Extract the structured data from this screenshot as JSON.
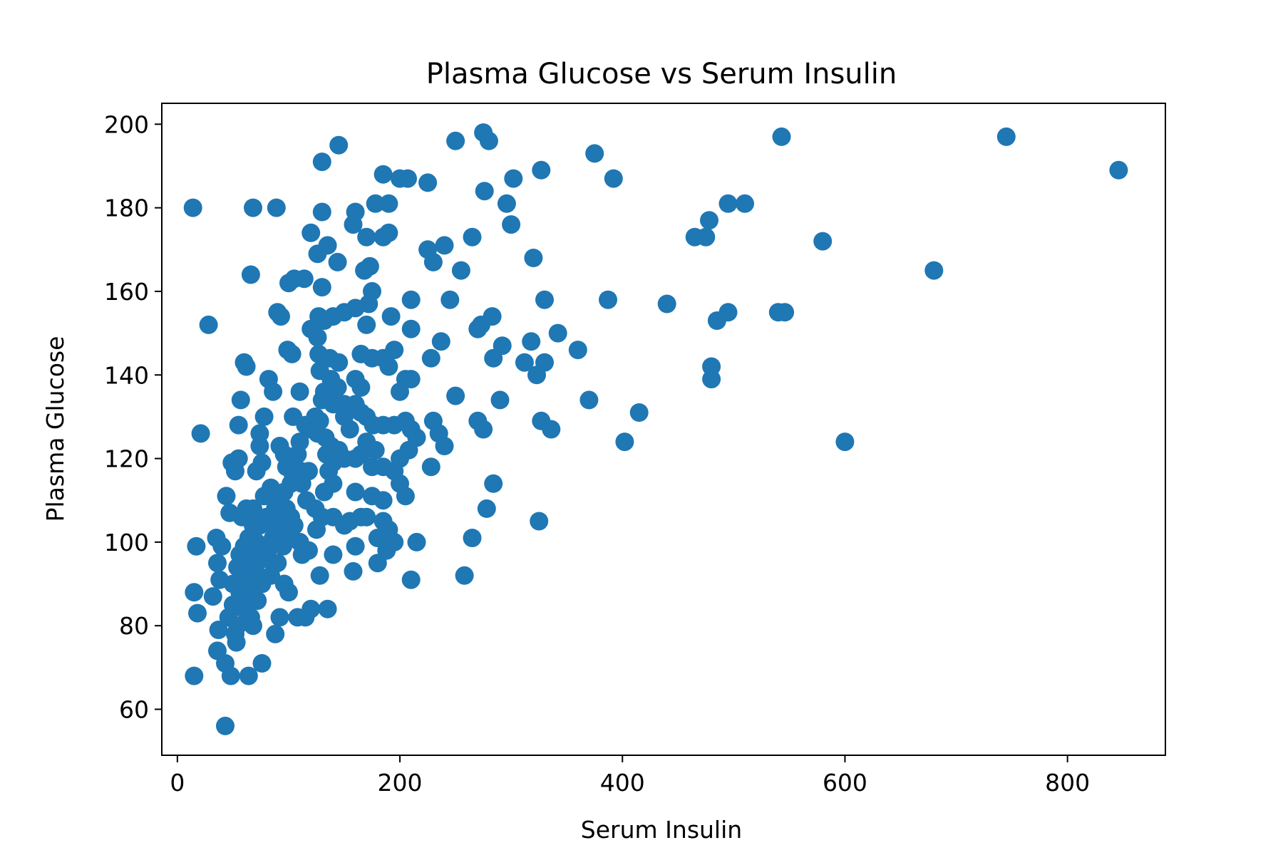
{
  "chart_data": {
    "type": "scatter",
    "title": "Plasma Glucose vs Serum Insulin",
    "xlabel": "Serum Insulin",
    "ylabel": "Plasma Glucose",
    "xlim": [
      -14,
      888
    ],
    "ylim": [
      49,
      205
    ],
    "xticks": [
      0,
      200,
      400,
      600,
      800
    ],
    "yticks": [
      60,
      80,
      100,
      120,
      140,
      160,
      180,
      200
    ],
    "grid": false,
    "color": "#1f77b4",
    "series": [
      {
        "points": [
          [
            14,
            180
          ],
          [
            68,
            180
          ],
          [
            89,
            180
          ],
          [
            28,
            152
          ],
          [
            21,
            126
          ],
          [
            17,
            99
          ],
          [
            15,
            88
          ],
          [
            18,
            83
          ],
          [
            15,
            68
          ],
          [
            43,
            56
          ],
          [
            60,
            143
          ],
          [
            62,
            142
          ],
          [
            57,
            134
          ],
          [
            55,
            128
          ],
          [
            66,
            164
          ],
          [
            49,
            119
          ],
          [
            55,
            120
          ],
          [
            52,
            117
          ],
          [
            44,
            111
          ],
          [
            47,
            107
          ],
          [
            35,
            101
          ],
          [
            40,
            99
          ],
          [
            36,
            95
          ],
          [
            38,
            91
          ],
          [
            32,
            87
          ],
          [
            37,
            79
          ],
          [
            36,
            74
          ],
          [
            43,
            71
          ],
          [
            48,
            68
          ],
          [
            64,
            68
          ],
          [
            46,
            82
          ],
          [
            52,
            78
          ],
          [
            53,
            76
          ],
          [
            50,
            85
          ],
          [
            56,
            88
          ],
          [
            62,
            92
          ],
          [
            63,
            96
          ],
          [
            67,
            99
          ],
          [
            71,
            100
          ],
          [
            73,
            104
          ],
          [
            68,
            108
          ],
          [
            71,
            117
          ],
          [
            76,
            119
          ],
          [
            74,
            123
          ],
          [
            74,
            126
          ],
          [
            82,
            139
          ],
          [
            86,
            136
          ],
          [
            78,
            130
          ],
          [
            90,
            155
          ],
          [
            93,
            154
          ],
          [
            99,
            146
          ],
          [
            103,
            145
          ],
          [
            100,
            162
          ],
          [
            105,
            163
          ],
          [
            114,
            163
          ],
          [
            110,
            136
          ],
          [
            104,
            130
          ],
          [
            115,
            128
          ],
          [
            120,
            174
          ],
          [
            126,
            169
          ],
          [
            130,
            179
          ],
          [
            130,
            191
          ],
          [
            145,
            195
          ],
          [
            135,
            171
          ],
          [
            144,
            167
          ],
          [
            130,
            161
          ],
          [
            127,
            154
          ],
          [
            132,
            153
          ],
          [
            120,
            151
          ],
          [
            126,
            149
          ],
          [
            127,
            145
          ],
          [
            137,
            144
          ],
          [
            145,
            143
          ],
          [
            128,
            141
          ],
          [
            138,
            139
          ],
          [
            132,
            136
          ],
          [
            144,
            137
          ],
          [
            130,
            134
          ],
          [
            140,
            133
          ],
          [
            150,
            133
          ],
          [
            120,
            127
          ],
          [
            126,
            126
          ],
          [
            133,
            125
          ],
          [
            138,
            123
          ],
          [
            134,
            121
          ],
          [
            140,
            119
          ],
          [
            136,
            117
          ],
          [
            132,
            112
          ],
          [
            140,
            114
          ],
          [
            124,
            108
          ],
          [
            130,
            106
          ],
          [
            140,
            106
          ],
          [
            150,
            104
          ],
          [
            125,
            103
          ],
          [
            118,
            98
          ],
          [
            128,
            92
          ],
          [
            140,
            97
          ],
          [
            135,
            84
          ],
          [
            120,
            84
          ],
          [
            108,
            82
          ],
          [
            115,
            82
          ],
          [
            92,
            82
          ],
          [
            88,
            78
          ],
          [
            96,
            90
          ],
          [
            100,
            88
          ],
          [
            84,
            92
          ],
          [
            90,
            95
          ],
          [
            95,
            99
          ],
          [
            100,
            101
          ],
          [
            105,
            104
          ],
          [
            110,
            100
          ],
          [
            112,
            97
          ],
          [
            116,
            110
          ],
          [
            118,
            117
          ],
          [
            104,
            116
          ],
          [
            98,
            118
          ],
          [
            96,
            121
          ],
          [
            92,
            123
          ],
          [
            108,
            121
          ],
          [
            111,
            117
          ],
          [
            112,
            114
          ],
          [
            78,
            111
          ],
          [
            84,
            113
          ],
          [
            80,
            106
          ],
          [
            88,
            108
          ],
          [
            74,
            104
          ],
          [
            86,
            101
          ],
          [
            80,
            99
          ],
          [
            94,
            102
          ],
          [
            98,
            108
          ],
          [
            102,
            106
          ],
          [
            90,
            110
          ],
          [
            76,
            96
          ],
          [
            70,
            94
          ],
          [
            72,
            92
          ],
          [
            66,
            90
          ],
          [
            62,
            88
          ],
          [
            58,
            86
          ],
          [
            60,
            84
          ],
          [
            66,
            82
          ],
          [
            68,
            80
          ],
          [
            54,
            80
          ],
          [
            50,
            90
          ],
          [
            54,
            94
          ],
          [
            56,
            97
          ],
          [
            60,
            99
          ],
          [
            64,
            101
          ],
          [
            68,
            104
          ],
          [
            58,
            106
          ],
          [
            62,
            108
          ],
          [
            72,
            86
          ],
          [
            76,
            90
          ],
          [
            80,
            96
          ],
          [
            84,
            99
          ],
          [
            88,
            103
          ],
          [
            94,
            106
          ],
          [
            96,
            112
          ],
          [
            102,
            114
          ],
          [
            106,
            118
          ],
          [
            110,
            124
          ],
          [
            118,
            128
          ],
          [
            124,
            130
          ],
          [
            128,
            129
          ],
          [
            76,
            71
          ],
          [
            158,
            176
          ],
          [
            160,
            179
          ],
          [
            170,
            173
          ],
          [
            178,
            181
          ],
          [
            190,
            181
          ],
          [
            185,
            173
          ],
          [
            190,
            174
          ],
          [
            185,
            188
          ],
          [
            200,
            187
          ],
          [
            207,
            187
          ],
          [
            225,
            186
          ],
          [
            250,
            196
          ],
          [
            275,
            198
          ],
          [
            280,
            196
          ],
          [
            276,
            184
          ],
          [
            265,
            173
          ],
          [
            240,
            171
          ],
          [
            225,
            170
          ],
          [
            230,
            167
          ],
          [
            255,
            165
          ],
          [
            173,
            166
          ],
          [
            168,
            165
          ],
          [
            175,
            160
          ],
          [
            172,
            157
          ],
          [
            160,
            156
          ],
          [
            150,
            155
          ],
          [
            140,
            154
          ],
          [
            170,
            152
          ],
          [
            192,
            154
          ],
          [
            210,
            158
          ],
          [
            210,
            151
          ],
          [
            245,
            158
          ],
          [
            195,
            146
          ],
          [
            190,
            142
          ],
          [
            185,
            144
          ],
          [
            175,
            144
          ],
          [
            165,
            145
          ],
          [
            160,
            139
          ],
          [
            165,
            137
          ],
          [
            170,
            130
          ],
          [
            176,
            128
          ],
          [
            185,
            128
          ],
          [
            195,
            128
          ],
          [
            205,
            129
          ],
          [
            210,
            127
          ],
          [
            215,
            125
          ],
          [
            230,
            129
          ],
          [
            235,
            126
          ],
          [
            240,
            123
          ],
          [
            228,
            118
          ],
          [
            208,
            122
          ],
          [
            200,
            120
          ],
          [
            195,
            117
          ],
          [
            185,
            118
          ],
          [
            175,
            118
          ],
          [
            165,
            121
          ],
          [
            170,
            124
          ],
          [
            178,
            122
          ],
          [
            160,
            120
          ],
          [
            150,
            120
          ],
          [
            145,
            122
          ],
          [
            155,
            127
          ],
          [
            150,
            130
          ],
          [
            160,
            133
          ],
          [
            165,
            131
          ],
          [
            200,
            114
          ],
          [
            205,
            111
          ],
          [
            185,
            110
          ],
          [
            175,
            111
          ],
          [
            160,
            112
          ],
          [
            155,
            105
          ],
          [
            165,
            106
          ],
          [
            170,
            106
          ],
          [
            185,
            105
          ],
          [
            190,
            103
          ],
          [
            188,
            98
          ],
          [
            180,
            101
          ],
          [
            195,
            100
          ],
          [
            215,
            100
          ],
          [
            160,
            99
          ],
          [
            158,
            93
          ],
          [
            180,
            95
          ],
          [
            210,
            91
          ],
          [
            205,
            139
          ],
          [
            200,
            136
          ],
          [
            228,
            144
          ],
          [
            237,
            148
          ],
          [
            210,
            139
          ],
          [
            250,
            135
          ],
          [
            270,
            129
          ],
          [
            275,
            127
          ],
          [
            270,
            151
          ],
          [
            273,
            152
          ],
          [
            283,
            154
          ],
          [
            284,
            144
          ],
          [
            290,
            134
          ],
          [
            292,
            147
          ],
          [
            302,
            187
          ],
          [
            296,
            181
          ],
          [
            300,
            176
          ],
          [
            327,
            189
          ],
          [
            320,
            168
          ],
          [
            330,
            158
          ],
          [
            318,
            148
          ],
          [
            312,
            143
          ],
          [
            330,
            143
          ],
          [
            323,
            140
          ],
          [
            327,
            129
          ],
          [
            336,
            127
          ],
          [
            342,
            150
          ],
          [
            360,
            146
          ],
          [
            370,
            134
          ],
          [
            375,
            193
          ],
          [
            392,
            187
          ],
          [
            387,
            158
          ],
          [
            402,
            124
          ],
          [
            415,
            131
          ],
          [
            440,
            157
          ],
          [
            465,
            173
          ],
          [
            475,
            173
          ],
          [
            478,
            177
          ],
          [
            495,
            181
          ],
          [
            510,
            181
          ],
          [
            480,
            142
          ],
          [
            480,
            139
          ],
          [
            485,
            153
          ],
          [
            495,
            155
          ],
          [
            543,
            197
          ],
          [
            540,
            155
          ],
          [
            546,
            155
          ],
          [
            580,
            172
          ],
          [
            600,
            124
          ],
          [
            680,
            165
          ],
          [
            745,
            197
          ],
          [
            846,
            189
          ],
          [
            278,
            108
          ],
          [
            284,
            114
          ],
          [
            325,
            105
          ],
          [
            265,
            101
          ],
          [
            258,
            92
          ]
        ]
      }
    ]
  }
}
